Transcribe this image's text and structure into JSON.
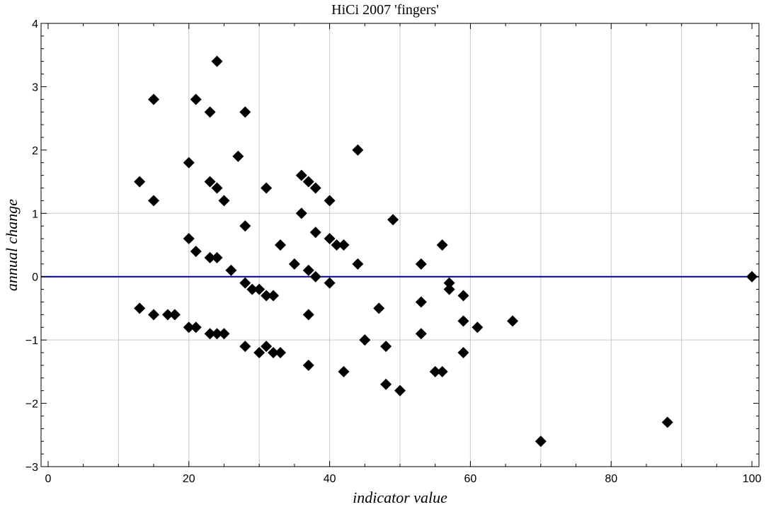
{
  "chart_data": {
    "type": "scatter",
    "title": "HiCi   2007   'fingers'",
    "xlabel": "indicator value",
    "ylabel": "annual change",
    "xlim": [
      -1,
      101
    ],
    "ylim": [
      -3,
      4
    ],
    "x_ticks": [
      0,
      20,
      40,
      60,
      80,
      100
    ],
    "x_tick_labels": [
      "0",
      "20",
      "40",
      "60",
      "80",
      "100"
    ],
    "y_ticks": [
      -3,
      -2,
      -1,
      0,
      1,
      2,
      3,
      4
    ],
    "y_tick_labels": [
      "−3",
      "−2",
      "−1",
      "0",
      "1",
      "2",
      "3",
      "4"
    ],
    "x_gridlines": [
      10,
      20,
      30,
      40,
      50,
      60,
      70,
      80,
      90
    ],
    "y_gridlines": [
      -1,
      1
    ],
    "reference_line": {
      "y": 0,
      "color": "#00008b"
    },
    "marker": "diamond",
    "marker_color": "#000000",
    "grid": true,
    "points": [
      {
        "x": 13,
        "y": 1.5
      },
      {
        "x": 13,
        "y": -0.5
      },
      {
        "x": 15,
        "y": 2.8
      },
      {
        "x": 15,
        "y": 1.2
      },
      {
        "x": 15,
        "y": -0.6
      },
      {
        "x": 17,
        "y": -0.6
      },
      {
        "x": 18,
        "y": -0.6
      },
      {
        "x": 20,
        "y": 1.8
      },
      {
        "x": 20,
        "y": 0.6
      },
      {
        "x": 20,
        "y": -0.8
      },
      {
        "x": 21,
        "y": 2.8
      },
      {
        "x": 21,
        "y": 0.4
      },
      {
        "x": 21,
        "y": -0.8
      },
      {
        "x": 23,
        "y": 2.6
      },
      {
        "x": 23,
        "y": 1.5
      },
      {
        "x": 23,
        "y": 0.3
      },
      {
        "x": 23,
        "y": -0.9
      },
      {
        "x": 24,
        "y": 3.4
      },
      {
        "x": 24,
        "y": 1.4
      },
      {
        "x": 24,
        "y": 0.3
      },
      {
        "x": 24,
        "y": -0.9
      },
      {
        "x": 25,
        "y": 1.2
      },
      {
        "x": 25,
        "y": -0.9
      },
      {
        "x": 26,
        "y": 0.1
      },
      {
        "x": 27,
        "y": 1.9
      },
      {
        "x": 28,
        "y": 2.6
      },
      {
        "x": 28,
        "y": 0.8
      },
      {
        "x": 28,
        "y": -0.1
      },
      {
        "x": 28,
        "y": -1.1
      },
      {
        "x": 29,
        "y": -0.2
      },
      {
        "x": 30,
        "y": -0.2
      },
      {
        "x": 30,
        "y": -1.2
      },
      {
        "x": 31,
        "y": 1.4
      },
      {
        "x": 31,
        "y": -0.3
      },
      {
        "x": 31,
        "y": -1.1
      },
      {
        "x": 32,
        "y": -0.3
      },
      {
        "x": 32,
        "y": -1.2
      },
      {
        "x": 33,
        "y": 0.5
      },
      {
        "x": 33,
        "y": -1.2
      },
      {
        "x": 35,
        "y": 0.2
      },
      {
        "x": 36,
        "y": 1.6
      },
      {
        "x": 36,
        "y": 1.0
      },
      {
        "x": 37,
        "y": 1.5
      },
      {
        "x": 37,
        "y": 0.1
      },
      {
        "x": 37,
        "y": -0.6
      },
      {
        "x": 37,
        "y": -1.4
      },
      {
        "x": 38,
        "y": 1.4
      },
      {
        "x": 38,
        "y": 0.7
      },
      {
        "x": 38,
        "y": 0.0
      },
      {
        "x": 40,
        "y": 1.2
      },
      {
        "x": 40,
        "y": 0.6
      },
      {
        "x": 40,
        "y": -0.1
      },
      {
        "x": 41,
        "y": 0.5
      },
      {
        "x": 42,
        "y": 0.5
      },
      {
        "x": 42,
        "y": -1.5
      },
      {
        "x": 44,
        "y": 2.0
      },
      {
        "x": 44,
        "y": 0.2
      },
      {
        "x": 45,
        "y": -1.0
      },
      {
        "x": 47,
        "y": -0.5
      },
      {
        "x": 48,
        "y": -1.1
      },
      {
        "x": 48,
        "y": -1.7
      },
      {
        "x": 49,
        "y": 0.9
      },
      {
        "x": 50,
        "y": -1.8
      },
      {
        "x": 53,
        "y": 0.2
      },
      {
        "x": 53,
        "y": -0.4
      },
      {
        "x": 53,
        "y": -0.9
      },
      {
        "x": 55,
        "y": -1.5
      },
      {
        "x": 56,
        "y": 0.5
      },
      {
        "x": 56,
        "y": -1.5
      },
      {
        "x": 57,
        "y": -0.1
      },
      {
        "x": 57,
        "y": -0.2
      },
      {
        "x": 59,
        "y": -0.3
      },
      {
        "x": 59,
        "y": -0.7
      },
      {
        "x": 59,
        "y": -1.2
      },
      {
        "x": 61,
        "y": -0.8
      },
      {
        "x": 66,
        "y": -0.7
      },
      {
        "x": 70,
        "y": -2.6
      },
      {
        "x": 88,
        "y": -2.3
      },
      {
        "x": 100,
        "y": 0.0
      }
    ]
  }
}
